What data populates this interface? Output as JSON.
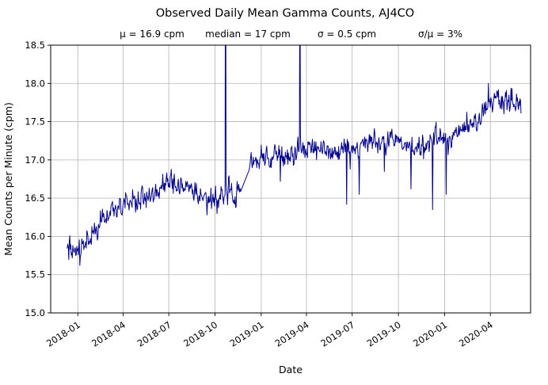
{
  "chart_data": {
    "type": "line",
    "title": "Observed Daily Mean Gamma Counts, AJ4CO",
    "stats": [
      "μ = 16.9 cpm",
      "median = 17 cpm",
      "σ = 0.5 cpm",
      "σ/μ = 3%"
    ],
    "xlabel": "Date",
    "ylabel": "Mean Counts per Minute (cpm)",
    "ylim": [
      15.0,
      18.5
    ],
    "ytick_values": [
      15.0,
      15.5,
      16.0,
      16.5,
      17.0,
      17.5,
      18.0,
      18.5
    ],
    "ytick_labels": [
      "15.0",
      "15.5",
      "16.0",
      "16.5",
      "17.0",
      "17.5",
      "18.0",
      "18.5"
    ],
    "xtick_labels": [
      "2018-01",
      "2018-04",
      "2018-07",
      "2018-10",
      "2019-01",
      "2019-04",
      "2019-07",
      "2019-10",
      "2020-01",
      "2020-04"
    ],
    "xtick_dates": [
      "2018-01-01",
      "2018-04-01",
      "2018-07-01",
      "2018-10-01",
      "2019-01-01",
      "2019-04-01",
      "2019-07-01",
      "2019-10-01",
      "2020-01-01",
      "2020-04-01"
    ],
    "x_domain": [
      "2017-11-08",
      "2020-06-20"
    ],
    "data_start": "2017-12-10",
    "data_end": "2020-06-01",
    "grid": true,
    "line_color": "#00008b",
    "grid_color": "#b3b3b3",
    "axis_color": "#000000",
    "background_color": "#ffffff",
    "noise_sigma": 0.075,
    "ar": 0.35,
    "seed": 20180101,
    "trend_anchors": [
      [
        "2017-12-10",
        15.8
      ],
      [
        "2018-01-01",
        15.85
      ],
      [
        "2018-01-20",
        15.95
      ],
      [
        "2018-02-10",
        16.1
      ],
      [
        "2018-03-01",
        16.25
      ],
      [
        "2018-03-20",
        16.35
      ],
      [
        "2018-04-10",
        16.45
      ],
      [
        "2018-05-01",
        16.5
      ],
      [
        "2018-05-20",
        16.55
      ],
      [
        "2018-06-10",
        16.6
      ],
      [
        "2018-07-01",
        16.7
      ],
      [
        "2018-07-20",
        16.65
      ],
      [
        "2018-08-10",
        16.6
      ],
      [
        "2018-09-01",
        16.55
      ],
      [
        "2018-09-20",
        16.45
      ],
      [
        "2018-10-10",
        16.55
      ],
      [
        "2018-10-25",
        16.6
      ],
      [
        "2018-11-10",
        16.6
      ],
      [
        "2018-11-20",
        16.6
      ],
      [
        "2018-12-08",
        16.95
      ],
      [
        "2019-01-01",
        17.0
      ],
      [
        "2019-02-01",
        17.0
      ],
      [
        "2019-03-01",
        17.05
      ],
      [
        "2019-04-01",
        17.15
      ],
      [
        "2019-05-01",
        17.15
      ],
      [
        "2019-06-01",
        17.1
      ],
      [
        "2019-07-01",
        17.15
      ],
      [
        "2019-08-01",
        17.2
      ],
      [
        "2019-09-01",
        17.2
      ],
      [
        "2019-10-01",
        17.3
      ],
      [
        "2019-10-20",
        17.2
      ],
      [
        "2019-11-10",
        17.1
      ],
      [
        "2019-12-01",
        17.2
      ],
      [
        "2019-12-20",
        17.25
      ],
      [
        "2020-01-10",
        17.3
      ],
      [
        "2020-02-01",
        17.4
      ],
      [
        "2020-02-20",
        17.45
      ],
      [
        "2020-03-10",
        17.55
      ],
      [
        "2020-03-28",
        17.75
      ],
      [
        "2020-04-10",
        17.8
      ],
      [
        "2020-04-25",
        17.75
      ],
      [
        "2020-05-10",
        17.75
      ],
      [
        "2020-06-01",
        17.72
      ]
    ],
    "spikes": [
      [
        "2018-01-05",
        15.62
      ],
      [
        "2018-09-15",
        16.28
      ],
      [
        "2018-10-05",
        16.3
      ],
      [
        "2018-10-22",
        21.0
      ],
      [
        "2019-02-08",
        16.72
      ],
      [
        "2019-03-19",
        20.0
      ],
      [
        "2019-06-20",
        16.42
      ],
      [
        "2019-07-15",
        16.55
      ],
      [
        "2019-09-03",
        16.85
      ],
      [
        "2019-10-26",
        16.62
      ],
      [
        "2019-12-08",
        16.35
      ],
      [
        "2020-01-04",
        16.55
      ],
      [
        "2020-03-28",
        18.0
      ]
    ],
    "gaps": [
      [
        "2018-11-22",
        "2018-12-07"
      ]
    ]
  }
}
